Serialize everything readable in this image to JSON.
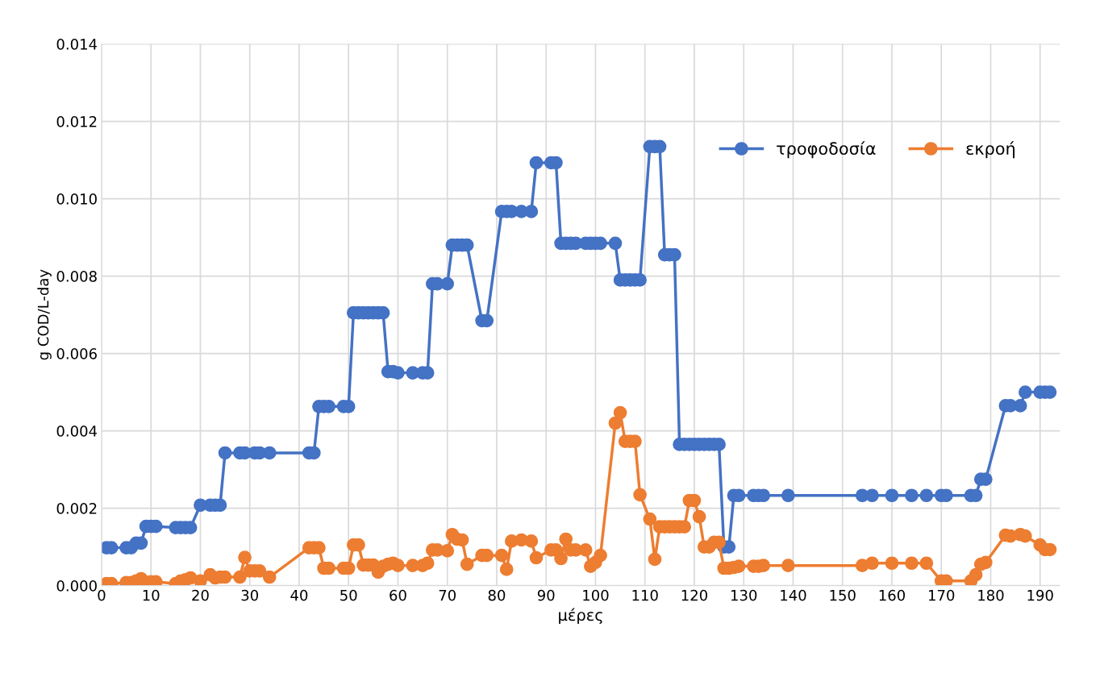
{
  "chart_data": {
    "type": "line",
    "xlabel": "μέρες",
    "ylabel": "g COD/L-day",
    "xlim": [
      0,
      194
    ],
    "xticks": [
      0,
      10,
      20,
      30,
      40,
      50,
      60,
      70,
      80,
      90,
      100,
      110,
      120,
      130,
      140,
      150,
      160,
      170,
      180,
      190
    ],
    "ylim": [
      0,
      0.014
    ],
    "yticks": [
      {
        "value": 0,
        "label": "0.000"
      },
      {
        "value": 0.002,
        "label": "0.002"
      },
      {
        "value": 0.004,
        "label": "0.004"
      },
      {
        "value": 0.006,
        "label": "0.006"
      },
      {
        "value": 0.008,
        "label": "0.008"
      },
      {
        "value": 0.01,
        "label": "0.010"
      },
      {
        "value": 0.012,
        "label": "0.012"
      },
      {
        "value": 0.014,
        "label": "0.014"
      }
    ],
    "grid": true,
    "legend": "top right",
    "marker": "circle",
    "line_style": "solid",
    "series": [
      {
        "name": "τροφοδοσία",
        "color": "#4472c4",
        "x": [
          1,
          2,
          5,
          6,
          7,
          8,
          9,
          10,
          11,
          15,
          16,
          17,
          18,
          20,
          22,
          23,
          24,
          25,
          28,
          29,
          31,
          32,
          34,
          42,
          43,
          44,
          45,
          46,
          49,
          50,
          51,
          52,
          53,
          54,
          55,
          56,
          57,
          58,
          59,
          60,
          63,
          65,
          66,
          67,
          68,
          70,
          71,
          72,
          73,
          74,
          77,
          78,
          81,
          82,
          83,
          85,
          87,
          88,
          91,
          92,
          93,
          94,
          95,
          96,
          98,
          99,
          100,
          101,
          104,
          105,
          106,
          107,
          108,
          109,
          111,
          112,
          113,
          114,
          115,
          116,
          117,
          118,
          119,
          120,
          121,
          122,
          123,
          124,
          125,
          126,
          127,
          128,
          129,
          132,
          133,
          134,
          139,
          154,
          156,
          160,
          164,
          167,
          170,
          171,
          176,
          177,
          178,
          179,
          183,
          184,
          186,
          187,
          190,
          191,
          192
        ],
        "values": [
          0.00098,
          0.00098,
          0.00098,
          0.00098,
          0.0011,
          0.0011,
          0.00153,
          0.00153,
          0.00153,
          0.0015,
          0.0015,
          0.0015,
          0.0015,
          0.00208,
          0.00208,
          0.00208,
          0.00208,
          0.00343,
          0.00343,
          0.00343,
          0.00343,
          0.00343,
          0.00343,
          0.00343,
          0.00343,
          0.00463,
          0.00463,
          0.00463,
          0.00463,
          0.00463,
          0.00705,
          0.00705,
          0.00705,
          0.00705,
          0.00705,
          0.00705,
          0.00705,
          0.00553,
          0.00553,
          0.0055,
          0.0055,
          0.0055,
          0.0055,
          0.0078,
          0.0078,
          0.0078,
          0.0088,
          0.0088,
          0.0088,
          0.0088,
          0.00685,
          0.00685,
          0.00967,
          0.00967,
          0.00967,
          0.00967,
          0.00967,
          0.01093,
          0.01093,
          0.01093,
          0.00885,
          0.00885,
          0.00885,
          0.00885,
          0.00885,
          0.00885,
          0.00885,
          0.00885,
          0.00885,
          0.0079,
          0.0079,
          0.0079,
          0.0079,
          0.0079,
          0.01135,
          0.01135,
          0.01135,
          0.00855,
          0.00855,
          0.00855,
          0.00365,
          0.00365,
          0.00365,
          0.00365,
          0.00365,
          0.00365,
          0.00365,
          0.00365,
          0.00365,
          0.001,
          0.001,
          0.00233,
          0.00233,
          0.00233,
          0.00233,
          0.00233,
          0.00233,
          0.00233,
          0.00233,
          0.00233,
          0.00233,
          0.00233,
          0.00233,
          0.00233,
          0.00233,
          0.00233,
          0.00275,
          0.00275,
          0.00465,
          0.00465,
          0.00465,
          0.005,
          0.005,
          0.005,
          0.005
        ]
      },
      {
        "name": "εκροή",
        "color": "#ed7d31",
        "x": [
          1,
          2,
          5,
          6,
          7,
          8,
          9,
          10,
          11,
          15,
          16,
          17,
          18,
          20,
          22,
          23,
          24,
          25,
          28,
          29,
          30,
          31,
          32,
          34,
          42,
          43,
          44,
          45,
          46,
          49,
          50,
          51,
          52,
          53,
          54,
          55,
          56,
          57,
          58,
          59,
          60,
          63,
          65,
          66,
          67,
          68,
          70,
          71,
          72,
          73,
          74,
          77,
          78,
          81,
          82,
          83,
          85,
          87,
          88,
          91,
          92,
          93,
          94,
          95,
          96,
          98,
          99,
          100,
          101,
          104,
          105,
          106,
          107,
          108,
          109,
          111,
          112,
          113,
          114,
          115,
          116,
          117,
          118,
          119,
          120,
          121,
          122,
          123,
          124,
          125,
          126,
          127,
          128,
          129,
          132,
          133,
          134,
          139,
          154,
          156,
          160,
          164,
          167,
          170,
          171,
          176,
          177,
          178,
          179,
          183,
          184,
          186,
          187,
          190,
          191,
          192
        ],
        "values": [
          5e-05,
          5e-05,
          8e-05,
          8e-05,
          0.00012,
          0.00018,
          8e-05,
          0.0001,
          0.0001,
          5e-05,
          0.00012,
          0.00015,
          0.0002,
          0.00012,
          0.00028,
          0.0002,
          0.00022,
          0.00022,
          0.00022,
          0.00073,
          0.00038,
          0.00038,
          0.00038,
          0.00022,
          0.00098,
          0.00098,
          0.00098,
          0.00045,
          0.00045,
          0.00045,
          0.00045,
          0.00105,
          0.00105,
          0.00053,
          0.00053,
          0.00053,
          0.00035,
          0.0005,
          0.00055,
          0.00058,
          0.00052,
          0.00052,
          0.00052,
          0.00058,
          0.00092,
          0.00092,
          0.0009,
          0.00132,
          0.0012,
          0.00118,
          0.00055,
          0.00078,
          0.00078,
          0.00078,
          0.00042,
          0.00115,
          0.00118,
          0.00115,
          0.00072,
          0.00092,
          0.00092,
          0.0007,
          0.0012,
          0.00092,
          0.00092,
          0.00092,
          0.0005,
          0.0006,
          0.00078,
          0.0042,
          0.00447,
          0.00373,
          0.00373,
          0.00373,
          0.00235,
          0.00172,
          0.00068,
          0.00152,
          0.00152,
          0.00152,
          0.00152,
          0.00152,
          0.00152,
          0.0022,
          0.0022,
          0.00178,
          0.001,
          0.001,
          0.00112,
          0.00112,
          0.00045,
          0.00045,
          0.00047,
          0.0005,
          0.0005,
          0.0005,
          0.00052,
          0.00052,
          0.00052,
          0.00058,
          0.00058,
          0.00058,
          0.00058,
          0.00012,
          0.00012,
          0.00012,
          0.00028,
          0.00055,
          0.0006,
          0.0013,
          0.00128,
          0.00132,
          0.00128,
          0.00105,
          0.00093,
          0.00093
        ]
      }
    ]
  }
}
